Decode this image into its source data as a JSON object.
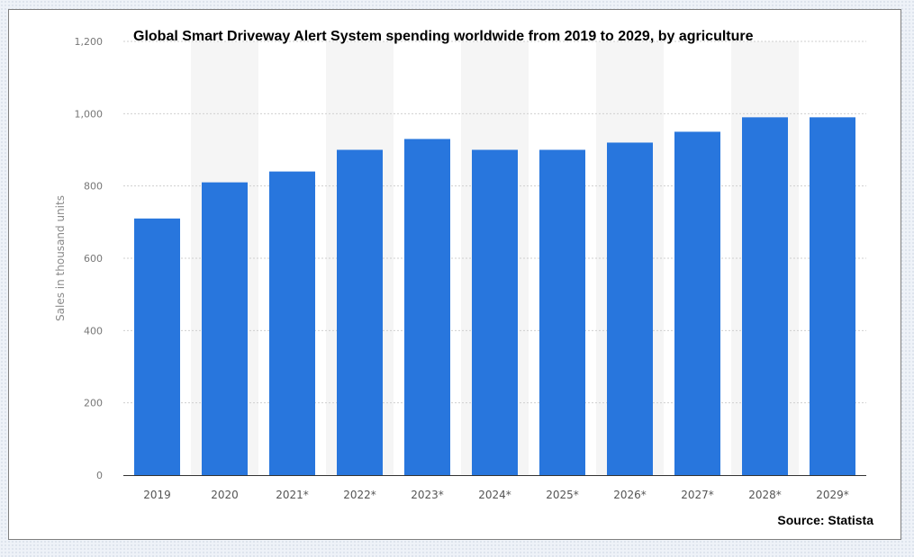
{
  "chart_data": {
    "type": "bar",
    "title": "Global Smart Driveway Alert System spending worldwide from 2019 to 2029, by agriculture",
    "ylabel": "Sales in thousand units",
    "xlabel": "",
    "source": "Source: Statista",
    "categories": [
      "2019",
      "2020",
      "2021*",
      "2022*",
      "2023*",
      "2024*",
      "2025*",
      "2026*",
      "2027*",
      "2028*",
      "2029*"
    ],
    "values": [
      710,
      810,
      840,
      900,
      930,
      900,
      900,
      920,
      950,
      990,
      990
    ],
    "ylim": [
      0,
      1200
    ],
    "yticks": [
      0,
      200,
      400,
      600,
      800,
      1000,
      1200
    ],
    "ytick_labels": [
      "0",
      "200",
      "400",
      "600",
      "800",
      "1,000",
      "1,200"
    ],
    "grid": true,
    "bar_color": "#2876dd"
  }
}
